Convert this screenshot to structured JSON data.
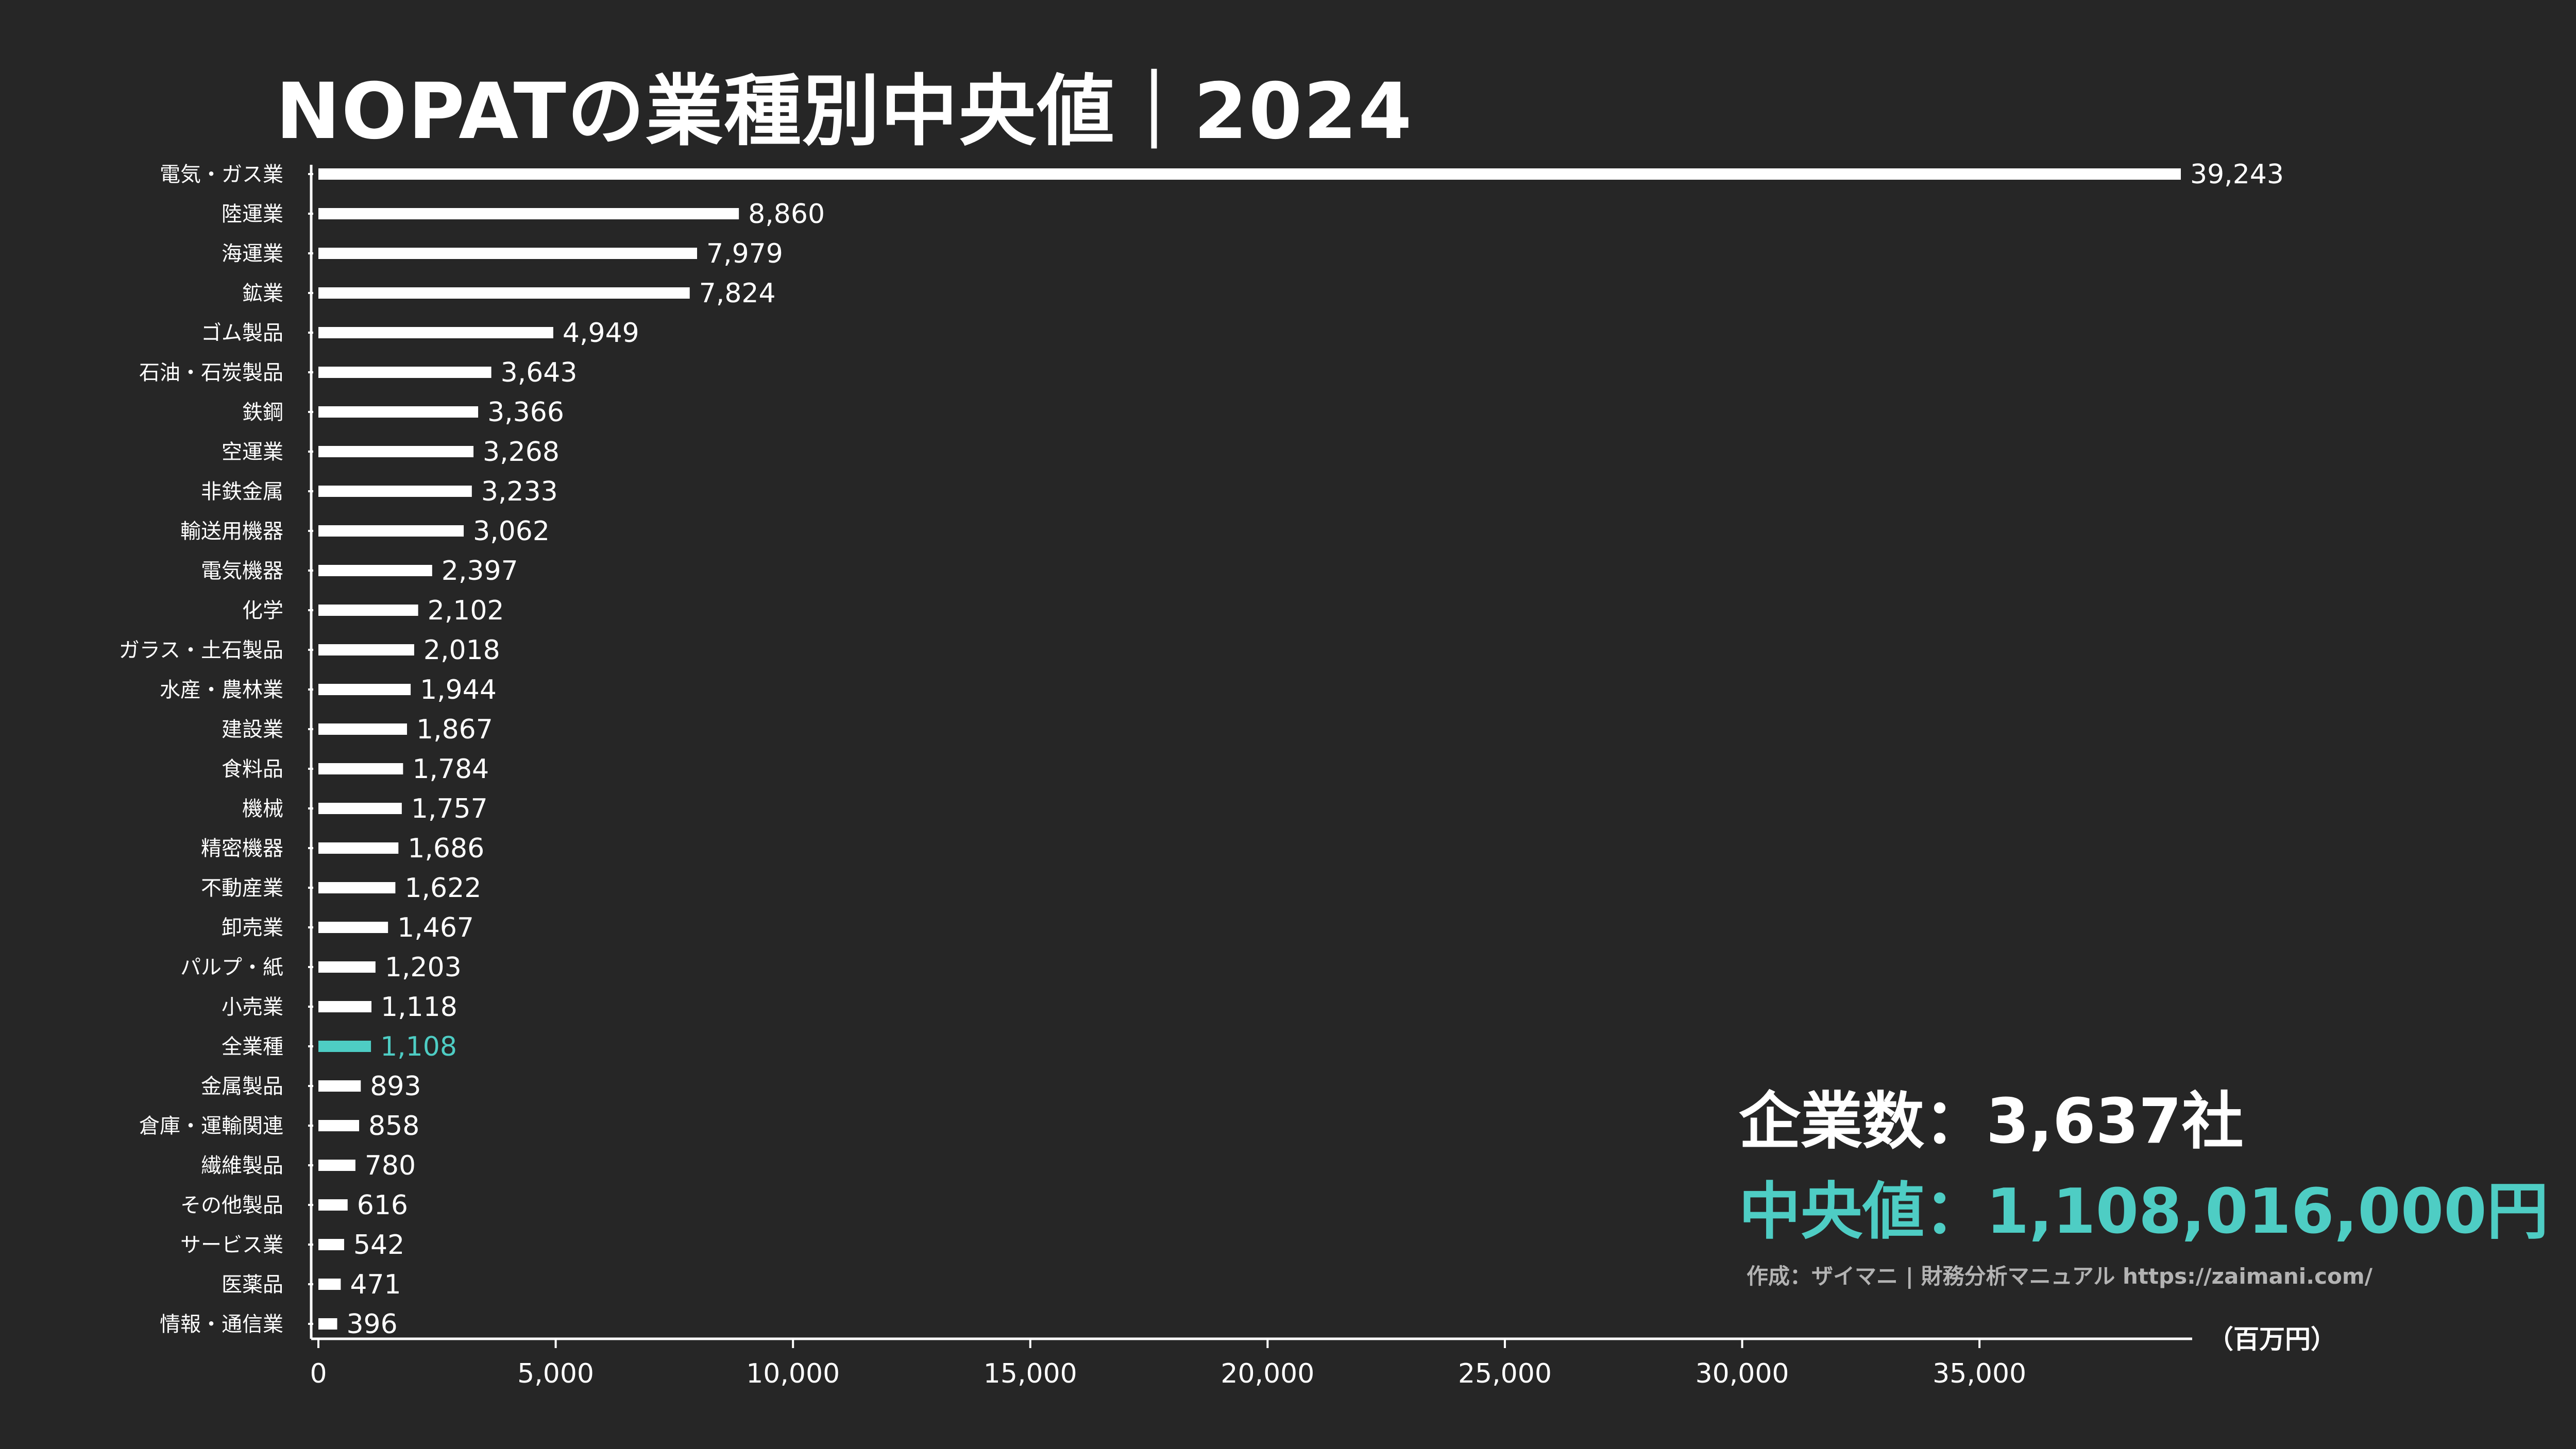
{
  "colors": {
    "background": "#262626",
    "bar": "#ffffff",
    "highlight": "#4ecdc4",
    "credit": "#b3b3b3"
  },
  "chart_data": {
    "type": "bar",
    "orientation": "horizontal",
    "title": "NOPATの業種別中央値｜2024",
    "unit": "（百万円）",
    "xlim": [
      0,
      39243
    ],
    "xticks": [
      0,
      5000,
      10000,
      15000,
      20000,
      25000,
      30000,
      35000
    ],
    "xtick_labels": [
      "0",
      "5,000",
      "10,000",
      "15,000",
      "20,000",
      "25,000",
      "30,000",
      "35,000"
    ],
    "highlight_category": "全業種",
    "categories": [
      "電気・ガス業",
      "陸運業",
      "海運業",
      "鉱業",
      "ゴム製品",
      "石油・石炭製品",
      "鉄鋼",
      "空運業",
      "非鉄金属",
      "輸送用機器",
      "電気機器",
      "化学",
      "ガラス・土石製品",
      "水産・農林業",
      "建設業",
      "食料品",
      "機械",
      "精密機器",
      "不動産業",
      "卸売業",
      "パルプ・紙",
      "小売業",
      "全業種",
      "金属製品",
      "倉庫・運輸関連",
      "繊維製品",
      "その他製品",
      "サービス業",
      "医薬品",
      "情報・通信業"
    ],
    "values": [
      39243,
      8860,
      7979,
      7824,
      4949,
      3643,
      3366,
      3268,
      3233,
      3062,
      2397,
      2102,
      2018,
      1944,
      1867,
      1784,
      1757,
      1686,
      1622,
      1467,
      1203,
      1118,
      1108,
      893,
      858,
      780,
      616,
      542,
      471,
      396
    ],
    "value_labels": [
      "39,243",
      "8,860",
      "7,979",
      "7,824",
      "4,949",
      "3,643",
      "3,366",
      "3,268",
      "3,233",
      "3,062",
      "2,397",
      "2,102",
      "2,018",
      "1,944",
      "1,867",
      "1,784",
      "1,757",
      "1,686",
      "1,622",
      "1,467",
      "1,203",
      "1,118",
      "1,108",
      "893",
      "858",
      "780",
      "616",
      "542",
      "471",
      "396"
    ]
  },
  "stats": {
    "company_count": "企業数：3,637社",
    "median": "中央値：1,108,016,000円"
  },
  "credit": "作成：ザイマニ | 財務分析マニュアル https://zaimani.com/"
}
